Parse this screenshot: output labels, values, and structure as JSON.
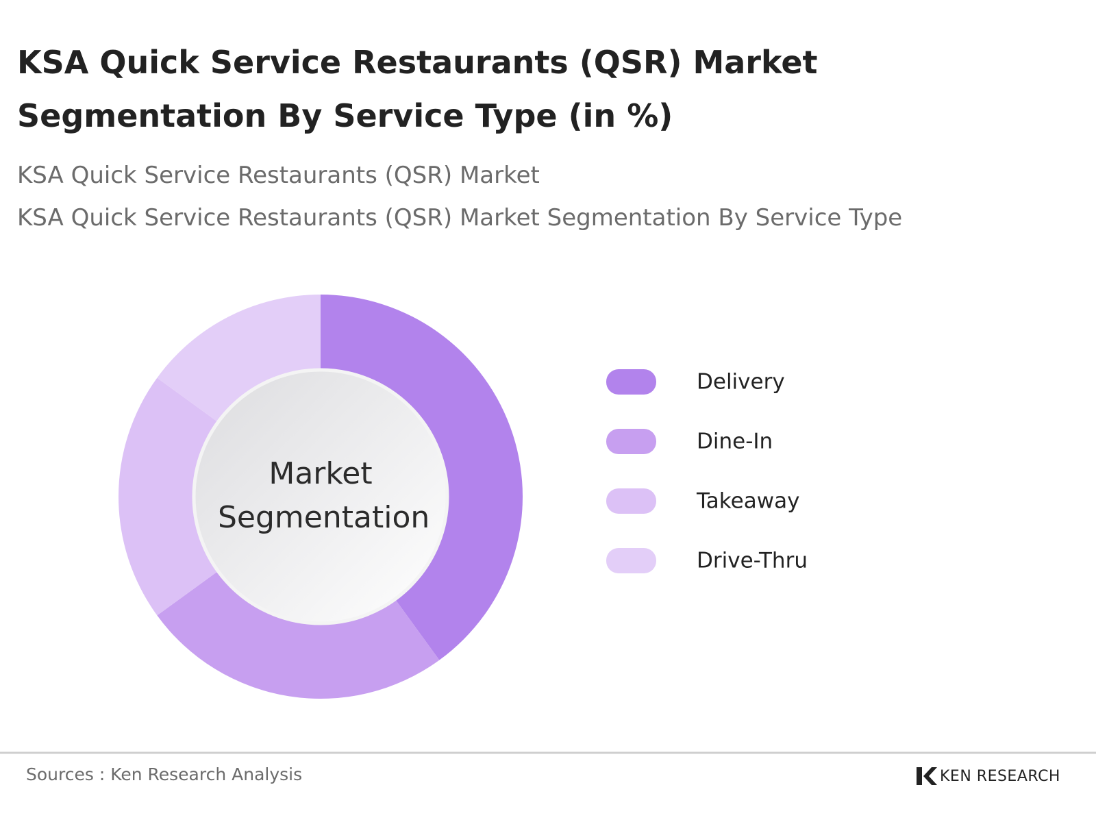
{
  "chart_data": {
    "type": "donut",
    "title": "KSA Quick Service Restaurants (QSR) Market Segmentation By Service Type (in %)",
    "subtitle": [
      "KSA Quick Service Restaurants (QSR) Market",
      "KSA Quick Service Restaurants (QSR) Market Segmentation By Service Type"
    ],
    "center_label": "Market Segmentation",
    "categories": [
      "Delivery",
      "Dine-In",
      "Takeaway",
      "Drive-Thru"
    ],
    "values": [
      40,
      25,
      20,
      15
    ],
    "colors": [
      "#b283ec",
      "#c79ff0",
      "#dcc1f6",
      "#e3cef8"
    ]
  },
  "footer": {
    "source": "Sources : Ken Research Analysis",
    "logo": "KEN RESEARCH"
  }
}
